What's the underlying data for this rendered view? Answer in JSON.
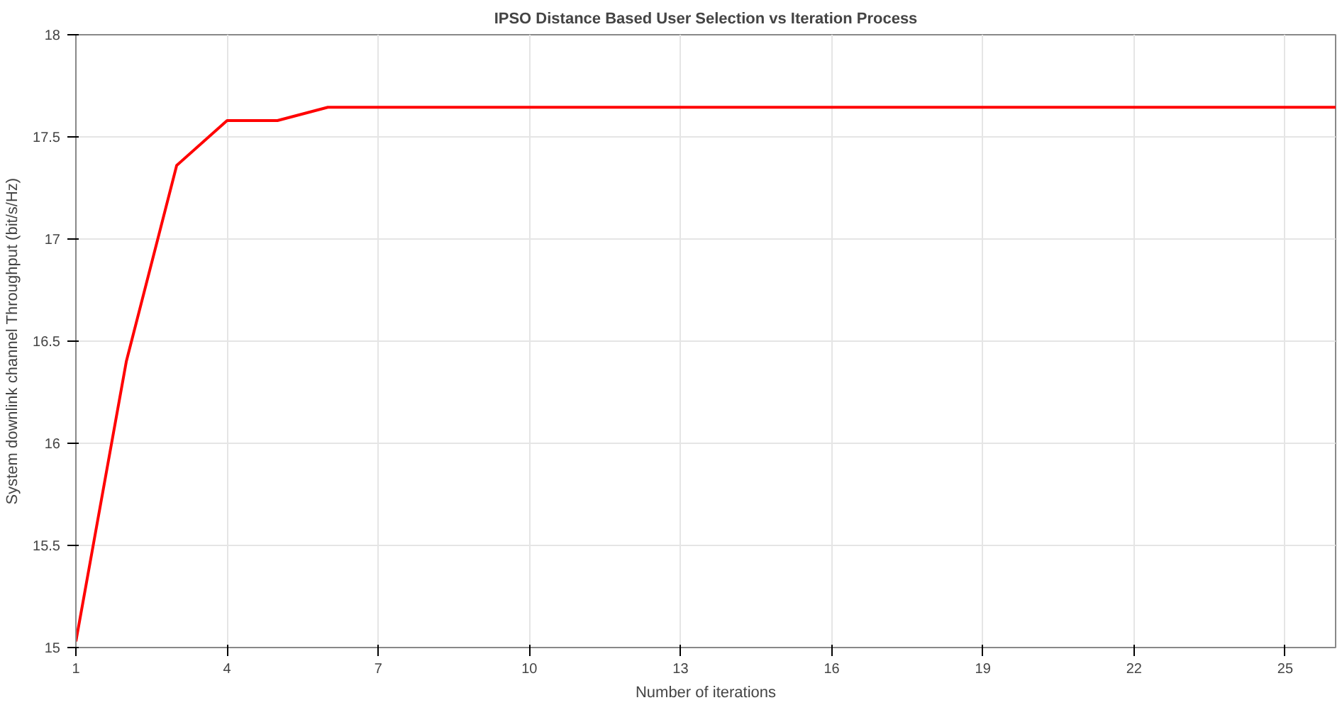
{
  "chart_data": {
    "type": "line",
    "title": "IPSO Distance Based User Selection vs Iteration Process",
    "xlabel": "Number of iterations",
    "ylabel": "System downlink channel Throughput (bit/s/Hz)",
    "x": [
      1,
      2,
      3,
      4,
      5,
      6,
      7,
      8,
      9,
      10,
      11,
      12,
      13,
      14,
      15,
      16,
      17,
      18,
      19,
      20,
      21,
      22,
      23,
      24,
      25,
      26
    ],
    "series": [
      {
        "color": "#ff0000",
        "values": [
          15.03,
          16.4,
          17.36,
          17.58,
          17.58,
          17.645,
          17.645,
          17.645,
          17.645,
          17.645,
          17.645,
          17.645,
          17.645,
          17.645,
          17.645,
          17.645,
          17.645,
          17.645,
          17.645,
          17.645,
          17.645,
          17.645,
          17.645,
          17.645,
          17.645,
          17.645
        ]
      }
    ],
    "xlim": [
      1,
      26
    ],
    "ylim": [
      15,
      18
    ],
    "xticks": [
      1,
      4,
      7,
      10,
      13,
      16,
      19,
      22,
      25
    ],
    "yticks": [
      15,
      15.5,
      16,
      16.5,
      17,
      17.5,
      18
    ],
    "grid": true,
    "marker": "none",
    "line_style": "solid"
  }
}
